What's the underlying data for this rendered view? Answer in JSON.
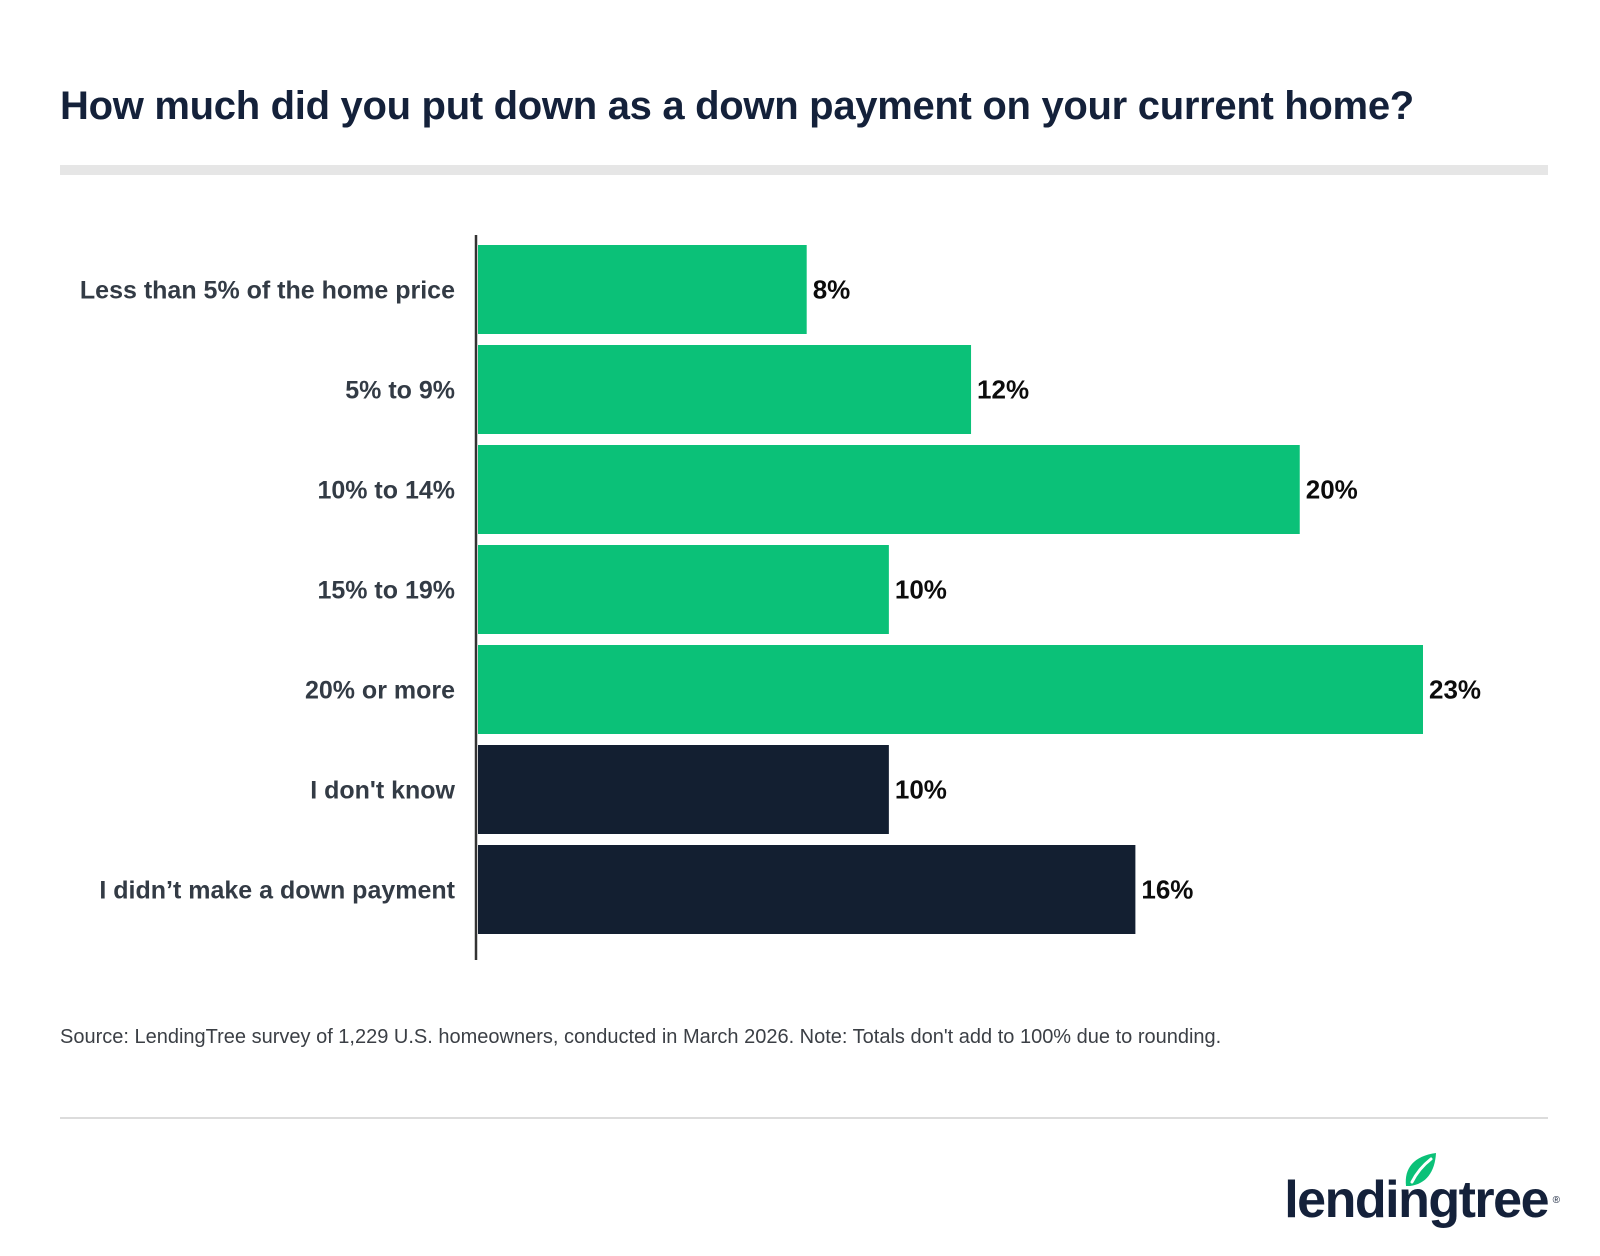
{
  "title": "How much did you put down as a down payment on your current home?",
  "source": "Source: LendingTree survey of 1,229 U.S. homeowners, conducted in March 2026. Note: Totals don't add to 100% due to rounding.",
  "logo": {
    "text": "lendingtree",
    "icon": "leaf-icon",
    "reg_mark": "®"
  },
  "colors": {
    "green": "#0bc178",
    "navy": "#131f31",
    "axis": "#333333"
  },
  "chart_data": {
    "type": "bar",
    "orientation": "horizontal",
    "categories": [
      "Less than 5% of the home price",
      "5% to 9%",
      "10% to 14%",
      "15% to 19%",
      "20% or more",
      "I don't know",
      "I didn’t make a down payment"
    ],
    "values": [
      8,
      12,
      20,
      10,
      23,
      10,
      16
    ],
    "value_labels": [
      "8%",
      "12%",
      "20%",
      "10%",
      "23%",
      "10%",
      "16%"
    ],
    "bar_colors": [
      "#0bc178",
      "#0bc178",
      "#0bc178",
      "#0bc178",
      "#0bc178",
      "#131f31",
      "#131f31"
    ],
    "xlim": [
      0,
      23
    ],
    "grid": false
  }
}
